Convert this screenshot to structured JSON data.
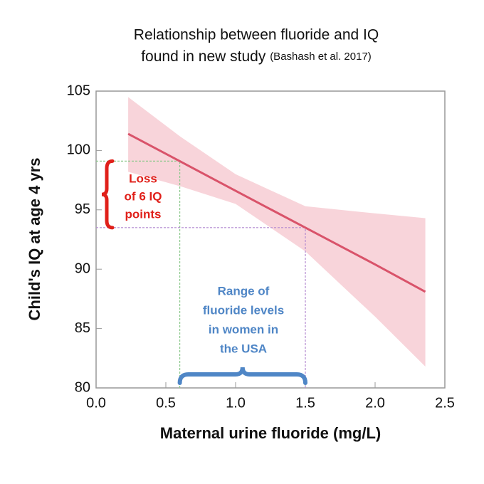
{
  "chart_data": {
    "type": "line",
    "title": "Relationship between fluoride and IQ",
    "subtitle": "found in new study",
    "source": "(Bashash et al. 2017)",
    "x_label": "Maternal urine fluoride (mg/L)",
    "y_label": "Child's IQ at age 4 yrs",
    "x": [
      0.23,
      0.6,
      1.0,
      1.5,
      2.0,
      2.36
    ],
    "series": [
      {
        "color": "#d9536a",
        "values": [
          101.4,
          99.1,
          96.6,
          93.5,
          90.4,
          88.1
        ]
      }
    ],
    "band": {
      "color": "#f5c6cd",
      "upper": [
        104.5,
        101.2,
        98.0,
        95.3,
        94.7,
        94.3
      ],
      "lower": [
        98.2,
        97.0,
        95.5,
        91.5,
        86.0,
        81.8
      ]
    },
    "xlim": [
      0,
      2.5
    ],
    "xticks": [
      {
        "value": 0,
        "label": "0.0"
      },
      0.5,
      {
        "value": 1,
        "label": "1.0"
      },
      1.5,
      {
        "value": 2,
        "label": "2.0"
      },
      2.5
    ],
    "ylim": [
      80,
      105
    ],
    "yticks": [
      80,
      85,
      90,
      95,
      100,
      105
    ],
    "reference_lines": [
      {
        "x": 0.6,
        "y": 99.1,
        "color": "#8cc98c"
      },
      {
        "x": 1.5,
        "y": 93.5,
        "color": "#b48ad0"
      }
    ],
    "annotations": [
      {
        "lines": [
          "Loss",
          "of 6 IQ",
          "points"
        ],
        "color": "#e0201a"
      },
      {
        "lines": [
          "Range of",
          "fluoride levels",
          "in women in",
          "the USA"
        ],
        "color": "#4f86c6"
      }
    ]
  }
}
